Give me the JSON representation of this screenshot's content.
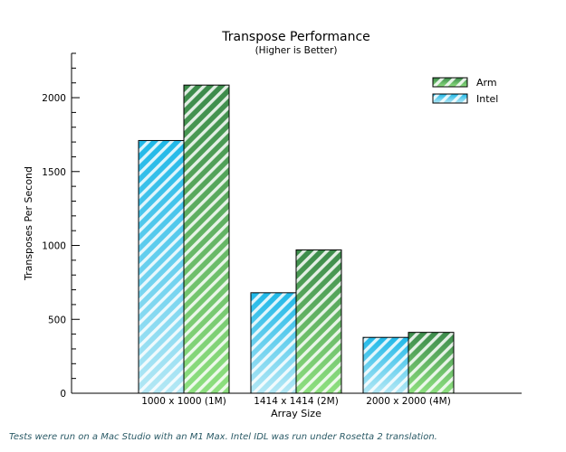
{
  "chart_data": {
    "type": "bar",
    "title": "Transpose Performance",
    "subtitle": "(Higher is Better)",
    "xlabel": "Array Size",
    "ylabel": "Transposes Per Second",
    "categories": [
      "1000 x 1000 (1M)",
      "1414 x 1414 (2M)",
      "2000 x 2000 (4M)"
    ],
    "series": [
      {
        "name": "Intel",
        "values": [
          1710,
          680,
          378
        ],
        "color": "#1fb8e8",
        "color_light": "#b4e8f5",
        "stripe": "#ffffff"
      },
      {
        "name": "Arm",
        "values": [
          2085,
          970,
          412
        ],
        "color": "#3b8a4a",
        "color_light": "#8ee07f",
        "stripe": "#ffffff"
      }
    ],
    "ylim": [
      0,
      2300
    ],
    "yticks": [
      0,
      500,
      1000,
      1500,
      2000
    ],
    "minor_tick_step": 100,
    "legend_order": [
      "Arm",
      "Intel"
    ],
    "legend_position": "top-right",
    "grid": false
  },
  "footnote": "Tests were run on a Mac Studio with an M1 Max.  Intel IDL was run under Rosetta 2 translation."
}
